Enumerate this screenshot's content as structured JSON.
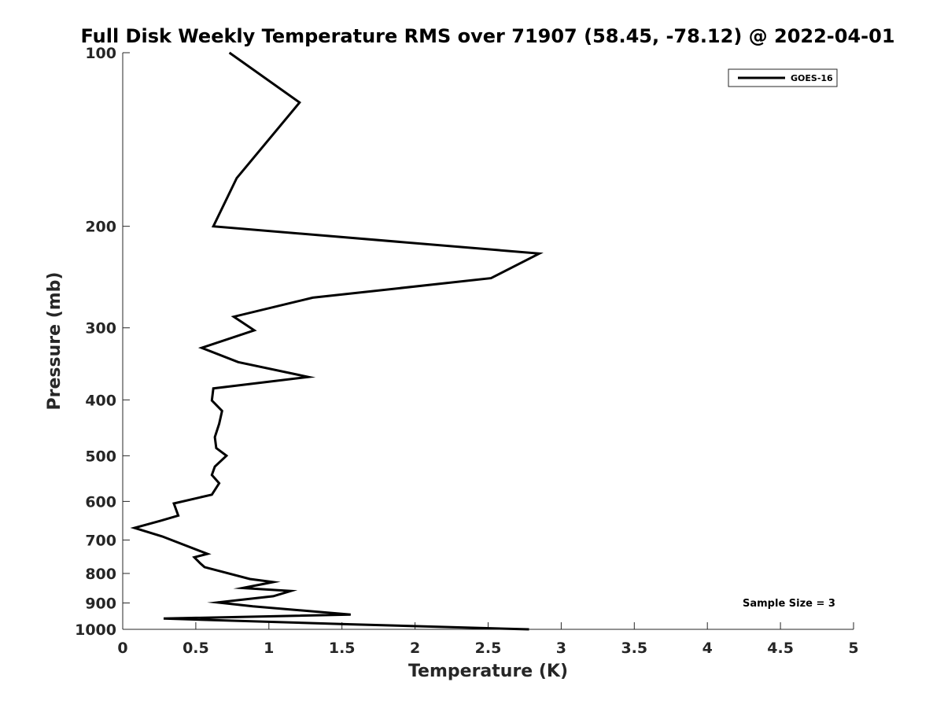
{
  "chart_data": {
    "type": "line",
    "title": "Full Disk Weekly Temperature RMS over 71907 (58.45, -78.12) @ 2022-04-01",
    "xlabel": "Temperature (K)",
    "ylabel": "Pressure (mb)",
    "xlim": [
      0,
      5
    ],
    "ylim": [
      100,
      1000
    ],
    "yscale": "log",
    "y_reversed": true,
    "x_ticks": [
      0,
      0.5,
      1,
      1.5,
      2,
      2.5,
      3,
      3.5,
      4,
      4.5,
      5
    ],
    "x_tick_labels": [
      "0",
      "0.5",
      "1",
      "1.5",
      "2",
      "2.5",
      "3",
      "3.5",
      "4",
      "4.5",
      "5"
    ],
    "y_ticks": [
      100,
      200,
      300,
      400,
      500,
      600,
      700,
      800,
      900,
      1000
    ],
    "y_tick_labels": [
      "100",
      "200",
      "300",
      "400",
      "500",
      "600",
      "700",
      "800",
      "900",
      "1000"
    ],
    "grid": false,
    "legend": {
      "location": "top-right",
      "entries": [
        "GOES-16"
      ]
    },
    "annotations": [
      {
        "text": "Sample Size = 3",
        "location": "bottom-right"
      }
    ],
    "series": [
      {
        "name": "GOES-16",
        "color": "#000000",
        "points": [
          [
            0.73,
            100
          ],
          [
            1.21,
            122
          ],
          [
            0.78,
            165
          ],
          [
            0.62,
            200
          ],
          [
            2.85,
            223
          ],
          [
            2.52,
            246
          ],
          [
            1.3,
            266
          ],
          [
            0.76,
            287
          ],
          [
            0.9,
            303
          ],
          [
            0.54,
            325
          ],
          [
            0.79,
            344
          ],
          [
            1.27,
            365
          ],
          [
            0.62,
            382
          ],
          [
            0.61,
            401
          ],
          [
            0.68,
            418
          ],
          [
            0.66,
            440
          ],
          [
            0.63,
            464
          ],
          [
            0.64,
            485
          ],
          [
            0.71,
            500
          ],
          [
            0.63,
            522
          ],
          [
            0.61,
            540
          ],
          [
            0.66,
            558
          ],
          [
            0.61,
            584
          ],
          [
            0.35,
            605
          ],
          [
            0.38,
            635
          ],
          [
            0.26,
            648
          ],
          [
            0.08,
            667
          ],
          [
            0.27,
            690
          ],
          [
            0.58,
            740
          ],
          [
            0.49,
            750
          ],
          [
            0.53,
            768
          ],
          [
            0.56,
            780
          ],
          [
            0.87,
            818
          ],
          [
            1.03,
            828
          ],
          [
            0.82,
            848
          ],
          [
            1.15,
            858
          ],
          [
            1.03,
            876
          ],
          [
            0.65,
            898
          ],
          [
            0.89,
            912
          ],
          [
            1.56,
            943
          ],
          [
            0.28,
            958
          ],
          [
            1.56,
            980
          ],
          [
            2.78,
            1000
          ]
        ]
      }
    ]
  }
}
